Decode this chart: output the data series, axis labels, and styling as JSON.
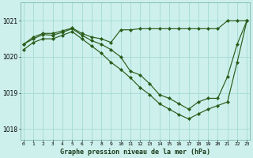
{
  "title": "Graphe pression niveau de la mer (hPa)",
  "bg_color": "#cdf0ec",
  "grid_color": "#a8ddd8",
  "line_color": "#2a5c1a",
  "x_ticks": [
    0,
    1,
    2,
    3,
    4,
    5,
    6,
    7,
    8,
    9,
    10,
    11,
    12,
    13,
    14,
    15,
    16,
    17,
    18,
    19,
    20,
    21,
    22,
    23
  ],
  "y_ticks": [
    1018,
    1019,
    1020,
    1021
  ],
  "ylim": [
    1017.7,
    1021.5
  ],
  "xlim": [
    -0.3,
    23.3
  ],
  "series": [
    {
      "x": [
        0,
        1,
        2,
        3,
        4,
        5,
        6,
        7,
        8,
        9,
        10,
        11,
        12,
        13,
        14,
        15,
        16,
        17,
        18,
        19,
        20,
        21,
        22,
        23
      ],
      "y": [
        1020.35,
        1020.55,
        1020.65,
        1020.65,
        1020.72,
        1020.8,
        1020.65,
        1020.55,
        1020.5,
        1020.4,
        1020.75,
        1020.75,
        1020.78,
        1020.78,
        1020.78,
        1020.78,
        1020.78,
        1020.78,
        1020.78,
        1020.78,
        1020.78,
        1021.0,
        1021.0,
        1021.0
      ]
    },
    {
      "x": [
        0,
        1,
        2,
        3,
        4,
        5,
        6,
        7,
        8,
        9,
        10,
        11,
        12,
        13,
        14,
        15,
        16,
        17,
        18,
        19,
        20,
        21,
        22,
        23
      ],
      "y": [
        1020.35,
        1020.5,
        1020.62,
        1020.6,
        1020.68,
        1020.78,
        1020.6,
        1020.45,
        1020.35,
        1020.2,
        1020.0,
        1019.6,
        1019.5,
        1019.25,
        1018.95,
        1018.85,
        1018.7,
        1018.55,
        1018.75,
        1018.85,
        1018.85,
        1019.45,
        1020.35,
        1021.0
      ]
    },
    {
      "x": [
        0,
        1,
        2,
        3,
        4,
        5,
        6,
        7,
        8,
        9,
        10,
        11,
        12,
        13,
        14,
        15,
        16,
        17,
        18,
        19,
        20,
        21,
        22,
        23
      ],
      "y": [
        1020.2,
        1020.4,
        1020.5,
        1020.5,
        1020.6,
        1020.7,
        1020.5,
        1020.3,
        1020.1,
        1019.85,
        1019.65,
        1019.42,
        1019.15,
        1018.95,
        1018.7,
        1018.55,
        1018.4,
        1018.28,
        1018.42,
        1018.55,
        1018.65,
        1018.75,
        1019.85,
        1021.0
      ]
    }
  ]
}
